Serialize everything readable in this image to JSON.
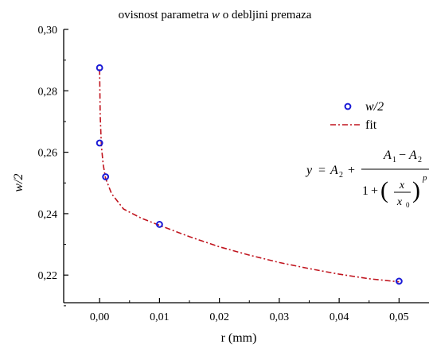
{
  "chart_data": {
    "type": "scatter",
    "title_prefix": "ovisnost parametra ",
    "title_var": "w",
    "title_suffix": " o debljini premaza",
    "xlabel": "r (mm)",
    "ylabel": "w/2",
    "xlim": [
      -0.006,
      0.055
    ],
    "ylim": [
      0.211,
      0.3
    ],
    "x_ticks": [
      0.0,
      0.01,
      0.02,
      0.03,
      0.04,
      0.05
    ],
    "x_tick_labels": [
      "0,00",
      "0,01",
      "0,02",
      "0,03",
      "0,04",
      "0,05"
    ],
    "y_ticks": [
      0.22,
      0.24,
      0.26,
      0.28,
      0.3
    ],
    "y_tick_labels": [
      "0,22",
      "0,24",
      "0,26",
      "0,28",
      "0,30"
    ],
    "grid": false,
    "legend_position": "top-right",
    "series": [
      {
        "name": "w/2",
        "kind": "points",
        "color": "#1a1ad6",
        "x": [
          0.0,
          0.0,
          0.001,
          0.01,
          0.05
        ],
        "y": [
          0.2875,
          0.263,
          0.252,
          0.2365,
          0.218
        ]
      },
      {
        "name": "fit",
        "kind": "curve",
        "color": "#c0141e",
        "x": [
          0.0,
          0.0001,
          0.0003,
          0.0006,
          0.001,
          0.002,
          0.004,
          0.007,
          0.01,
          0.015,
          0.02,
          0.025,
          0.03,
          0.035,
          0.04,
          0.045,
          0.05
        ],
        "y": [
          0.287,
          0.272,
          0.262,
          0.256,
          0.2515,
          0.2465,
          0.2415,
          0.2385,
          0.2362,
          0.2325,
          0.2292,
          0.2265,
          0.2241,
          0.2221,
          0.2203,
          0.2188,
          0.2178
        ]
      }
    ],
    "equation": {
      "y": "y",
      "eq": "=",
      "A2": "A",
      "A2_sub": "2",
      "plus": "+",
      "num_A1": "A",
      "num_A1_sub": "1",
      "minus": "−",
      "num_A2": "A",
      "num_A2_sub": "2",
      "den_one": "1",
      "den_plus": "+",
      "x": "x",
      "x0": "x",
      "x0_sub": "0",
      "p": "p",
      "lparen": "(",
      "rparen": ")"
    }
  }
}
